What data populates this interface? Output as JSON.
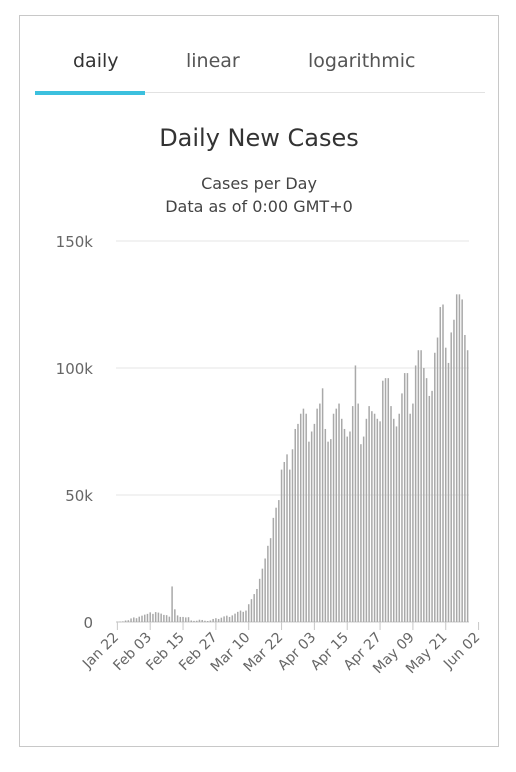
{
  "tabs": [
    {
      "label": "daily",
      "active": true
    },
    {
      "label": "linear",
      "active": false
    },
    {
      "label": "logarithmic",
      "active": false
    }
  ],
  "colors": {
    "accent": "#3cc0de",
    "bar": "#a9a9a9",
    "grid": "#e6e6e6",
    "text": "#333333",
    "axis_text": "#666666"
  },
  "chart_data": {
    "type": "bar",
    "title": "Daily New Cases",
    "subtitle_lines": [
      "Cases per Day",
      "Data as of 0:00 GMT+0"
    ],
    "xlabel": "",
    "ylabel": "",
    "ylim": [
      0,
      150000
    ],
    "yticks": [
      {
        "value": 0,
        "label": "0"
      },
      {
        "value": 50000,
        "label": "50k"
      },
      {
        "value": 100000,
        "label": "100k"
      },
      {
        "value": 150000,
        "label": "150k"
      }
    ],
    "grid": true,
    "legend": "none",
    "x_start": "Jan 22",
    "x_tick_labels": [
      {
        "index": 0,
        "label": "Jan 22"
      },
      {
        "index": 12,
        "label": "Feb 03"
      },
      {
        "index": 24,
        "label": "Feb 15"
      },
      {
        "index": 36,
        "label": "Feb 27"
      },
      {
        "index": 48,
        "label": "Mar 10"
      },
      {
        "index": 60,
        "label": "Mar 22"
      },
      {
        "index": 72,
        "label": "Apr 03"
      },
      {
        "index": 84,
        "label": "Apr 15"
      },
      {
        "index": 96,
        "label": "Apr 27"
      },
      {
        "index": 108,
        "label": "May 09"
      },
      {
        "index": 120,
        "label": "May 21"
      },
      {
        "index": 132,
        "label": "Jun 02"
      }
    ],
    "values": [
      100,
      150,
      250,
      600,
      700,
      1400,
      1800,
      1500,
      2100,
      2500,
      2900,
      3200,
      3800,
      3200,
      3900,
      3700,
      3300,
      2800,
      2700,
      2100,
      14000,
      5000,
      2600,
      2000,
      2000,
      1800,
      1900,
      600,
      450,
      500,
      900,
      800,
      500,
      400,
      600,
      1200,
      1500,
      1200,
      1700,
      2200,
      2500,
      2000,
      2600,
      3300,
      4000,
      4500,
      4000,
      4500,
      7000,
      9000,
      11000,
      13000,
      17000,
      21000,
      25000,
      30000,
      33000,
      41000,
      45000,
      48000,
      60000,
      63000,
      66000,
      60000,
      68000,
      76000,
      78000,
      82000,
      84000,
      82000,
      71000,
      75000,
      78000,
      84000,
      86000,
      92000,
      76000,
      71000,
      72000,
      82000,
      84000,
      86000,
      80000,
      76000,
      73000,
      75000,
      85000,
      101000,
      86000,
      70000,
      73000,
      80000,
      85000,
      83000,
      82000,
      80000,
      79000,
      95000,
      96000,
      96000,
      85000,
      80000,
      77000,
      82000,
      90000,
      98000,
      98000,
      82000,
      86000,
      101000,
      107000,
      107000,
      100000,
      96000,
      89000,
      91000,
      106000,
      112000,
      124000,
      125000,
      108000,
      102000,
      114000,
      119000,
      129000,
      129000,
      127000,
      113000,
      107000
    ]
  }
}
